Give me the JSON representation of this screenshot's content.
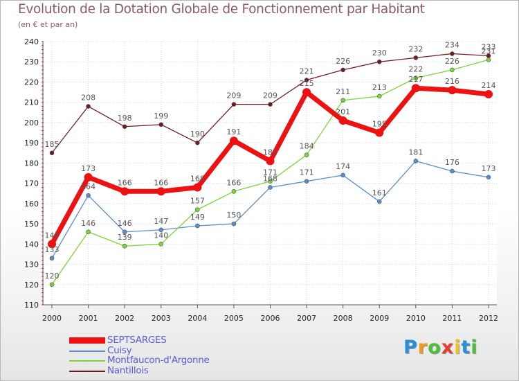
{
  "header": {
    "title": "Evolution de la Dotation Globale de Fonctionnement par Habitant",
    "subtitle": "(en € et par an)"
  },
  "logo": {
    "letters": [
      "P",
      "r",
      "o",
      "x",
      "i",
      "t",
      "i"
    ],
    "colors": [
      "#2b8fd6",
      "#f09a1a",
      "#4cbf3a",
      "#e63c2e",
      "#f0c21a",
      "#2b8fd6",
      "#4cbf3a"
    ]
  },
  "chart_data": {
    "type": "line",
    "title": "Evolution de la Dotation Globale de Fonctionnement par Habitant",
    "subtitle": "(en € et par an)",
    "xlabel": "",
    "ylabel": "",
    "x": [
      "2000",
      "2001",
      "2002",
      "2003",
      "2004",
      "2005",
      "2006",
      "2007",
      "2008",
      "2009",
      "2010",
      "2011",
      "2012"
    ],
    "ylim": [
      110,
      240
    ],
    "yticks": [
      110,
      120,
      130,
      140,
      150,
      160,
      170,
      180,
      190,
      200,
      210,
      220,
      230,
      240
    ],
    "legend_position": "bottom-left",
    "series": [
      {
        "name": "Nantillois",
        "color": "#6e1c24",
        "values": [
          185,
          208,
          198,
          199,
          190,
          209,
          209,
          221,
          226,
          230,
          232,
          234,
          233
        ]
      },
      {
        "name": "Cuisy",
        "color": "#5b8ec4",
        "values": [
          133,
          164,
          146,
          147,
          149,
          150,
          168,
          171,
          174,
          161,
          181,
          176,
          173
        ]
      },
      {
        "name": "Montfaucon-d'Argonne",
        "color": "#7cd438",
        "values": [
          120,
          146,
          139,
          140,
          157,
          166,
          171,
          184,
          211,
          213,
          222,
          226,
          231
        ]
      },
      {
        "name": "SEPTSARGES",
        "color": "#ee1111",
        "values": [
          140,
          173,
          166,
          166,
          168,
          191,
          181,
          215,
          201,
          195,
          217,
          216,
          214
        ]
      }
    ],
    "legend": [
      "SEPTSARGES",
      "Cuisy",
      "Montfaucon-d'Argonne",
      "Nantillois"
    ]
  }
}
